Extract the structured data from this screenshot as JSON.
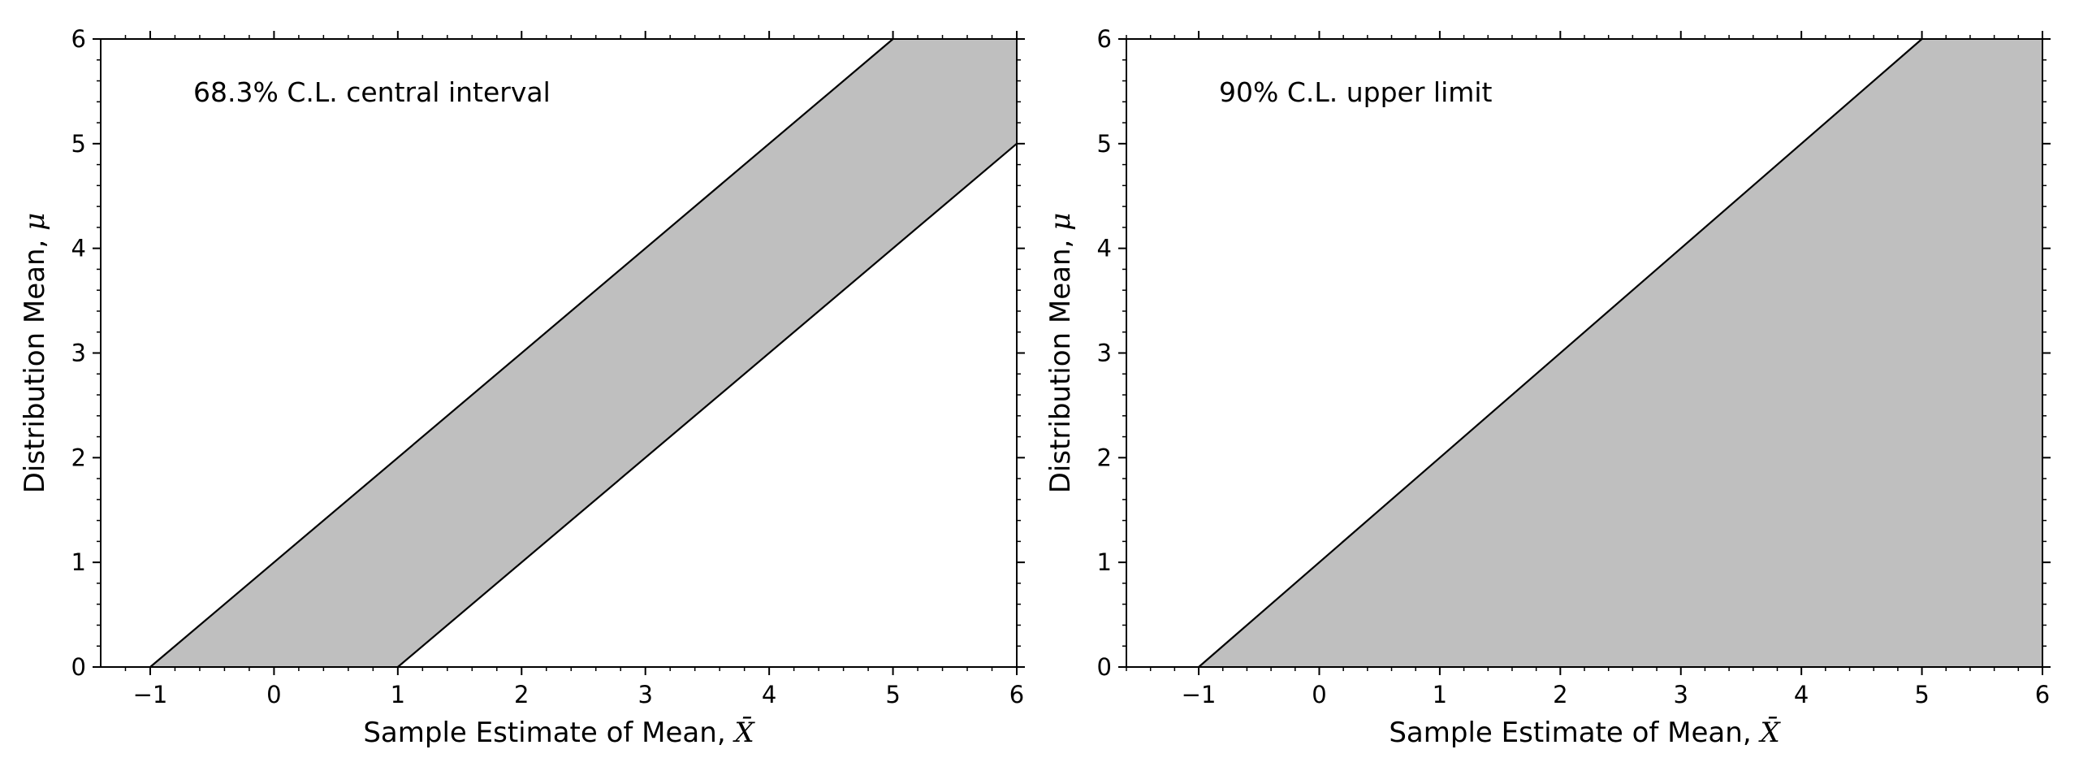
{
  "colors": {
    "band_fill": "#bfbfbf",
    "line": "#000000",
    "background": "#ffffff"
  },
  "chart_data": [
    {
      "type": "area",
      "annotation": "68.3% C.L. central interval",
      "xlabel": "Sample Estimate of Mean, X̄",
      "ylabel": "Distribution Mean, μ",
      "xlim": [
        -1.4,
        6
      ],
      "ylim": [
        0,
        6
      ],
      "xticks": [
        -1,
        0,
        1,
        2,
        3,
        4,
        5,
        6
      ],
      "xtick_labels": [
        "−1",
        "0",
        "1",
        "2",
        "3",
        "4",
        "5",
        "6"
      ],
      "yticks": [
        0,
        1,
        2,
        3,
        4,
        5,
        6
      ],
      "ytick_labels": [
        "0",
        "1",
        "2",
        "3",
        "4",
        "5",
        "6"
      ],
      "grid": false,
      "lines": [
        {
          "x": [
            -1,
            5
          ],
          "y": [
            0,
            6
          ]
        },
        {
          "x": [
            1,
            6
          ],
          "y": [
            0,
            5
          ]
        }
      ],
      "band": {
        "x": [
          -1,
          1,
          6,
          6,
          5
        ],
        "y": [
          0,
          0,
          5,
          6,
          6
        ]
      }
    },
    {
      "type": "area",
      "annotation": "90% C.L. upper limit",
      "xlabel": "Sample Estimate of Mean, X̄",
      "ylabel": "Distribution Mean, μ",
      "xlim": [
        -1.6,
        6
      ],
      "ylim": [
        0,
        6
      ],
      "xticks": [
        -1,
        0,
        1,
        2,
        3,
        4,
        5,
        6
      ],
      "xtick_labels": [
        "−1",
        "0",
        "1",
        "2",
        "3",
        "4",
        "5",
        "6"
      ],
      "yticks": [
        0,
        1,
        2,
        3,
        4,
        5,
        6
      ],
      "ytick_labels": [
        "0",
        "1",
        "2",
        "3",
        "4",
        "5",
        "6"
      ],
      "grid": false,
      "lines": [
        {
          "x": [
            -1,
            5
          ],
          "y": [
            0,
            6
          ]
        }
      ],
      "band": {
        "x": [
          -1,
          6,
          6,
          5
        ],
        "y": [
          0,
          0,
          6,
          6
        ]
      }
    }
  ]
}
